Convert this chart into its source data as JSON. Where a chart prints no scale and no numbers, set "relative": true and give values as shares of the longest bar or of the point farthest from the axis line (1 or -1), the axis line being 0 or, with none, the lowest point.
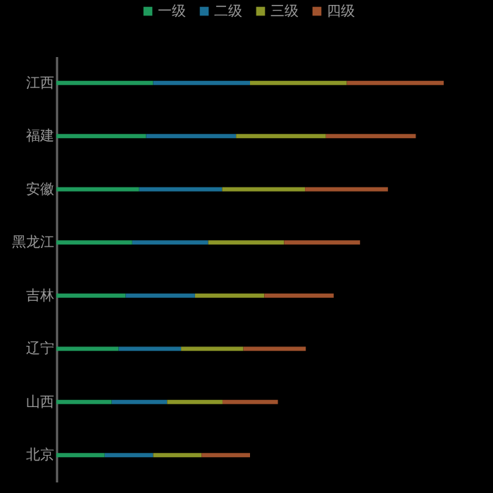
{
  "chart_data": {
    "type": "bar",
    "orientation": "horizontal",
    "stacked": true,
    "relative": true,
    "legend": "top",
    "categories": [
      "江西",
      "福建",
      "安徽",
      "黑龙江",
      "吉林",
      "辽宁",
      "山西",
      "北京"
    ],
    "series": [
      {
        "name": "一级",
        "color": "#1f9a5c",
        "values": [
          0.25,
          0.232,
          0.214,
          0.196,
          0.179,
          0.161,
          0.143,
          0.125
        ]
      },
      {
        "name": "二级",
        "color": "#1b6f96",
        "values": [
          0.25,
          0.232,
          0.214,
          0.196,
          0.179,
          0.161,
          0.143,
          0.125
        ]
      },
      {
        "name": "三级",
        "color": "#8c9628",
        "values": [
          0.25,
          0.232,
          0.214,
          0.196,
          0.179,
          0.161,
          0.143,
          0.125
        ]
      },
      {
        "name": "四级",
        "color": "#a0522d",
        "values": [
          0.25,
          0.232,
          0.214,
          0.196,
          0.179,
          0.161,
          0.143,
          0.125
        ]
      }
    ]
  }
}
